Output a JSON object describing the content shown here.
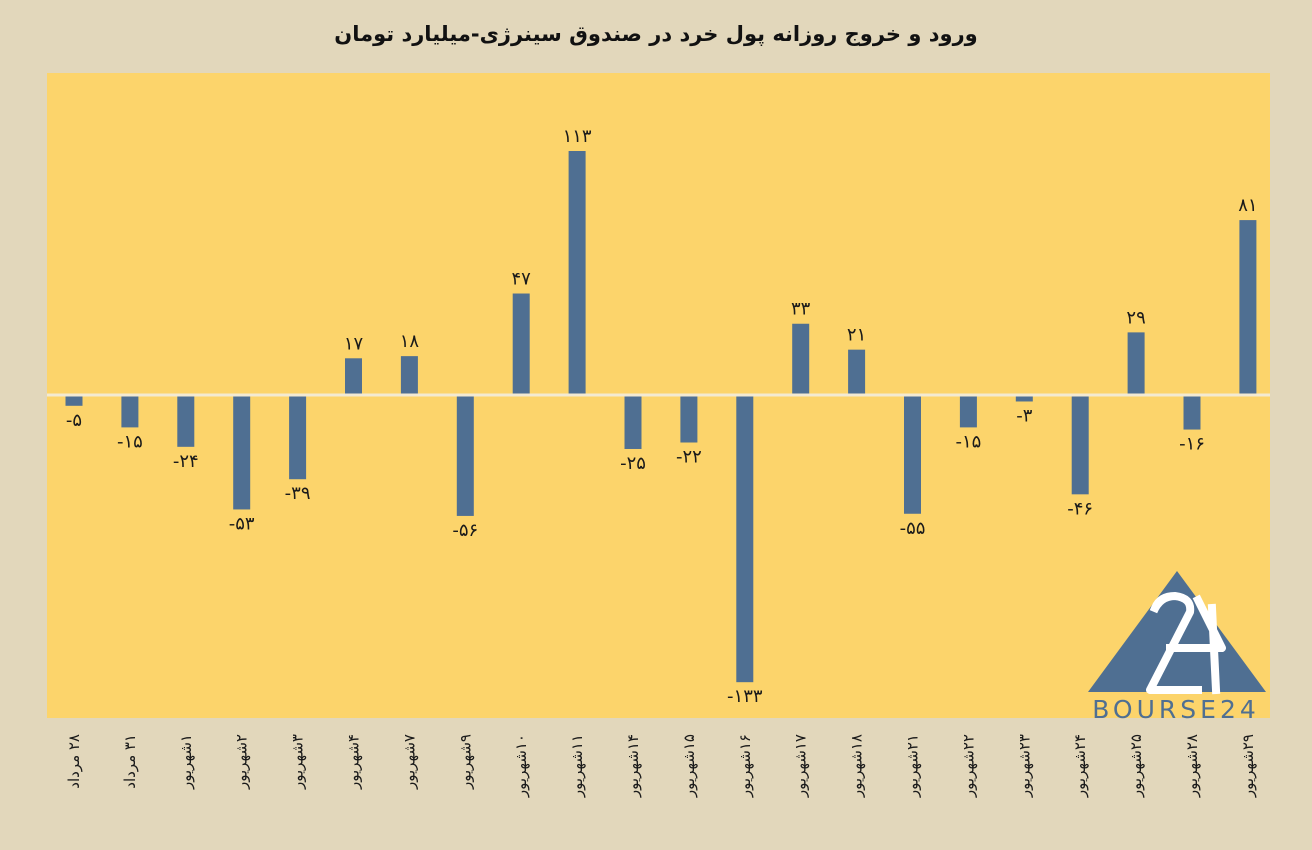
{
  "chart_data": {
    "type": "bar",
    "title": "ورود و خروج روزانه پول خرد در صندوق سینرژی-میلیارد تومان",
    "xlabel": "",
    "ylabel": "",
    "ylim": [
      -145,
      130
    ],
    "grid": false,
    "legend": "none",
    "categories": [
      "۲۸ مرداد",
      "۳۱ مرداد",
      "۱شهریور",
      "۲شهریور",
      "۳شهریور",
      "۴شهریور",
      "۷شهریور",
      "۹شهریور",
      "۱۰شهریور",
      "۱۱شهریور",
      "۱۴شهریور",
      "۱۵شهریور",
      "۱۶شهریور",
      "۱۷شهریور",
      "۱۸شهریور",
      "۲۱شهریور",
      "۲۲شهریور",
      "۲۳شهریور",
      "۲۴شهریور",
      "۲۵شهریور",
      "۲۸شهریور",
      "۲۹شهریور"
    ],
    "values": [
      -5,
      -15,
      -24,
      -53,
      -39,
      17,
      18,
      -56,
      47,
      113,
      -25,
      -22,
      -133,
      33,
      21,
      -55,
      -15,
      -3,
      -46,
      29,
      -16,
      81
    ],
    "data_labels": [
      "-۵",
      "-۱۵",
      "-۲۴",
      "-۵۳",
      "-۳۹",
      "۱۷",
      "۱۸",
      "-۵۶",
      "۴۷",
      "۱۱۳",
      "-۲۵",
      "-۲۲",
      "-۱۳۳",
      "۳۳",
      "۲۱",
      "-۵۵",
      "-۱۵",
      "-۳",
      "-۴۶",
      "۲۹",
      "-۱۶",
      "۸۱"
    ]
  },
  "colors": {
    "background": "#e2d7bb",
    "plot_area": "#fcd46b",
    "bar": "#4f6f92",
    "zero_line": "#f3ead2",
    "logo": "#4f6f92"
  },
  "logo": {
    "text": "BOURSE24",
    "mark": "24"
  }
}
